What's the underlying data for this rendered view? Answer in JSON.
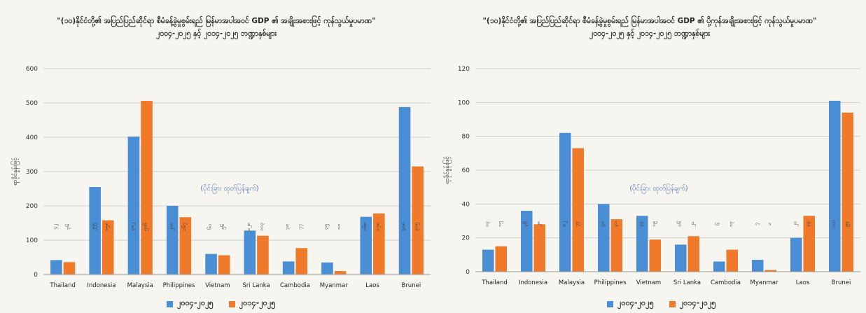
{
  "colors": {
    "series1": "#4a8fd6",
    "series2": "#f07a2a",
    "grid": "#cfcfcf"
  },
  "chart_data": [
    {
      "type": "bar",
      "title": "\"(၁၀)နိုင်ငံတို့၏ အပြည်ပြည်ဆိုင်ရာ စီမံခန့်ခွဲမှုစွမ်းရည် မြန်မာအပါအဝင် GDP ၏ အချိုးအစားဖြင့် ကုန်သွယ်မှုပမာဏ\"",
      "subtitle": "၂၀၀၄-၂၀၂၅ နှင့် ၂၀၁၄-၂၀၂၅ ဘဏ္ဍာနှစ်များ",
      "ylabel": "ရာခိုင်နှုန်းဖြင့်",
      "annotation": "(ပိုင်းခြား ထုတ်ပြန်ချက်)",
      "ylim": [
        0,
        600
      ],
      "yticks": [
        "0",
        "100",
        "200",
        "300",
        "400",
        "500",
        "600"
      ],
      "categories": [
        "Thailand",
        "Indonesia",
        "Malaysia",
        "Philippines",
        "Vietnam",
        "Sri Lanka",
        "Cambodia",
        "Myanmar",
        "Laos",
        "Brunei"
      ],
      "series": [
        {
          "name": "၂၀၀၄-၂၀၂၅",
          "values": [
            42,
            255,
            402,
            200,
            60,
            128,
            38,
            35,
            168,
            488
          ]
        },
        {
          "name": "၂၀၁၄-၂၀၂၅",
          "values": [
            36,
            158,
            506,
            167,
            56,
            113,
            77,
            10,
            178,
            315
          ]
        }
      ],
      "data_labels": [
        [
          "၄၂",
          "၂၅၅",
          "၄၀၂",
          "၂၀၀",
          "၆၀",
          "၁၂၈",
          "၃၈",
          "၃၅",
          "၁၆၈",
          "၄၈၈"
        ],
        [
          "၃၆",
          "၁၅၈",
          "၅၀၆",
          "၁၆၇",
          "၅၆",
          "၁၁၃",
          "၇၇",
          "၁၀",
          "၁၇၈",
          "၃၁၅"
        ]
      ]
    },
    {
      "type": "bar",
      "title": "\"(၁၀)နိုင်ငံတို့၏ အပြည်ပြည်ဆိုင်ရာ စီမံခန့်ခွဲမှုစွမ်းရည် မြန်မာအပါအဝင် GDP ၏ ပို့ကုန်အချိုးအစားဖြင့် ကုန်သွယ်မှုပမာဏ\"",
      "subtitle": "၂၀၀၄-၂၀၂၅ နှင့် ၂၀၁၄-၂၀၂၅ ဘဏ္ဍာနှစ်များ",
      "ylabel": "ရာခိုင်နှုန်းဖြင့်",
      "annotation": "(ပိုင်းခြား ထုတ်ပြန်ချက်)",
      "ylim": [
        0,
        120
      ],
      "yticks": [
        "0",
        "20",
        "40",
        "60",
        "80",
        "100",
        "120"
      ],
      "categories": [
        "Thailand",
        "Indonesia",
        "Malaysia",
        "Philippines",
        "Vietnam",
        "Sri Lanka",
        "Cambodia",
        "Myanmar",
        "Laos",
        "Brunei"
      ],
      "series": [
        {
          "name": "၂၀၀၄-၂၀၂၅",
          "values": [
            13,
            36,
            82,
            40,
            33,
            16,
            6,
            7,
            20,
            101
          ]
        },
        {
          "name": "၂၀၁၄-၂၀၂၅",
          "values": [
            15,
            28,
            73,
            31,
            19,
            21,
            13,
            1,
            33,
            94
          ]
        }
      ],
      "data_labels": [
        [
          "၁၃",
          "၃၆",
          "၈၂",
          "၄၀",
          "၃၃",
          "၁၆",
          "၆",
          "၇",
          "၂၀",
          "၁၀၁"
        ],
        [
          "၁၅",
          "၂၈",
          "၇၃",
          "၃၁",
          "၁၉",
          "၂၁",
          "၁၃",
          "၁",
          "၃၃",
          "၉၄"
        ]
      ]
    }
  ]
}
